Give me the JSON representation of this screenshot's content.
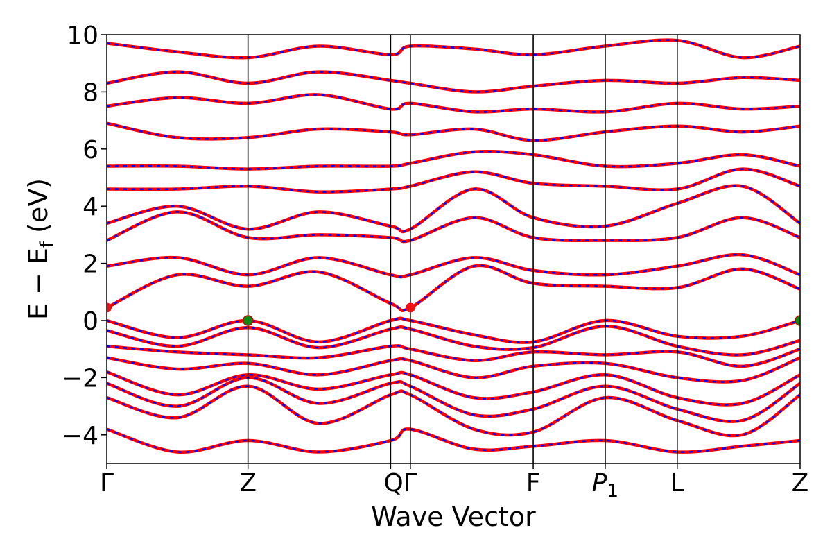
{
  "chart_data": {
    "type": "line",
    "title": "",
    "xlabel": "Wave Vector",
    "ylabel": "E − E",
    "ylabel_sub": "f",
    "ylabel_unit": " (eV)",
    "ylim": [
      -5,
      10
    ],
    "yticks": [
      -4,
      -2,
      0,
      2,
      4,
      6,
      8,
      10
    ],
    "ytick_labels": [
      "−4",
      "−2",
      "0",
      "2",
      "4",
      "6",
      "8",
      "10"
    ],
    "kpath": [
      {
        "label": "Γ",
        "k": 0.0
      },
      {
        "label": "Z",
        "k": 1.0
      },
      {
        "label": "Q",
        "k": 2.01
      },
      {
        "label": "Γ",
        "k": 2.15
      },
      {
        "label": "F",
        "k": 3.02
      },
      {
        "label": "P",
        "sub": "1",
        "k": 3.53
      },
      {
        "label": "L",
        "k": 4.04
      },
      {
        "label": "Z",
        "k": 4.91
      }
    ],
    "xtick_labels": [
      "Γ",
      "Z",
      "QΓ",
      "F",
      "P",
      "L",
      "Z"
    ],
    "xtick_sub": "1",
    "fermi_level": 0,
    "band_gap_markers": {
      "vbm": [
        {
          "k": 1.0,
          "E": 0.0
        },
        {
          "k": 4.91,
          "E": 0.0
        }
      ],
      "cbm": [
        {
          "k": 0.0,
          "E": 0.45
        },
        {
          "k": 2.15,
          "E": 0.45
        }
      ]
    },
    "series": [
      {
        "style": "solid",
        "color": "#ff0000",
        "bands": "red"
      },
      {
        "style": "dashed",
        "color": "#0000ff",
        "bands": "blue"
      }
    ],
    "bands": {
      "valence": [
        [
          [
            0,
            0.0
          ],
          [
            0.5,
            -0.6
          ],
          [
            1.0,
            0.0
          ],
          [
            1.5,
            -0.75
          ],
          [
            2.01,
            0.0
          ],
          [
            2.15,
            0.0
          ],
          [
            2.6,
            -0.5
          ],
          [
            3.02,
            -0.75
          ],
          [
            3.53,
            0.0
          ],
          [
            4.04,
            -0.55
          ],
          [
            4.5,
            -0.55
          ],
          [
            4.91,
            0.0
          ]
        ],
        [
          [
            0,
            -0.35
          ],
          [
            0.5,
            -0.9
          ],
          [
            1.0,
            -0.25
          ],
          [
            1.5,
            -0.95
          ],
          [
            2.01,
            -0.3
          ],
          [
            2.15,
            -0.3
          ],
          [
            2.6,
            -0.9
          ],
          [
            3.02,
            -0.95
          ],
          [
            3.53,
            -0.2
          ],
          [
            4.04,
            -0.9
          ],
          [
            4.5,
            -1.2
          ],
          [
            4.91,
            -0.7
          ]
        ],
        [
          [
            0,
            -0.9
          ],
          [
            0.5,
            -1.1
          ],
          [
            1.0,
            -1.2
          ],
          [
            1.5,
            -1.3
          ],
          [
            2.01,
            -0.9
          ],
          [
            2.15,
            -1.0
          ],
          [
            2.6,
            -1.4
          ],
          [
            3.02,
            -1.1
          ],
          [
            3.53,
            -1.2
          ],
          [
            4.04,
            -1.1
          ],
          [
            4.5,
            -1.6
          ],
          [
            4.91,
            -1.0
          ]
        ],
        [
          [
            0,
            -1.3
          ],
          [
            0.5,
            -1.7
          ],
          [
            1.0,
            -1.5
          ],
          [
            1.5,
            -1.9
          ],
          [
            2.01,
            -1.4
          ],
          [
            2.15,
            -1.4
          ],
          [
            2.6,
            -2.0
          ],
          [
            3.02,
            -1.6
          ],
          [
            3.53,
            -1.5
          ],
          [
            4.04,
            -2.0
          ],
          [
            4.5,
            -2.1
          ],
          [
            4.91,
            -1.3
          ]
        ],
        [
          [
            0,
            -1.8
          ],
          [
            0.5,
            -2.6
          ],
          [
            1.0,
            -1.9
          ],
          [
            1.5,
            -2.4
          ],
          [
            2.01,
            -1.9
          ],
          [
            2.15,
            -1.9
          ],
          [
            2.6,
            -2.7
          ],
          [
            3.02,
            -2.5
          ],
          [
            3.53,
            -1.9
          ],
          [
            4.04,
            -2.7
          ],
          [
            4.5,
            -2.9
          ],
          [
            4.91,
            -1.9
          ]
        ],
        [
          [
            0,
            -2.2
          ],
          [
            0.5,
            -3.0
          ],
          [
            1.0,
            -2.0
          ],
          [
            1.5,
            -2.9
          ],
          [
            2.01,
            -2.2
          ],
          [
            2.15,
            -2.3
          ],
          [
            2.6,
            -3.3
          ],
          [
            3.02,
            -3.1
          ],
          [
            3.53,
            -2.3
          ],
          [
            4.04,
            -3.1
          ],
          [
            4.5,
            -3.5
          ],
          [
            4.91,
            -2.2
          ]
        ],
        [
          [
            0,
            -2.7
          ],
          [
            0.5,
            -3.4
          ],
          [
            1.0,
            -2.3
          ],
          [
            1.5,
            -3.6
          ],
          [
            2.01,
            -2.6
          ],
          [
            2.15,
            -2.6
          ],
          [
            2.6,
            -3.8
          ],
          [
            3.02,
            -3.9
          ],
          [
            3.53,
            -2.7
          ],
          [
            4.04,
            -3.5
          ],
          [
            4.5,
            -4.0
          ],
          [
            4.91,
            -2.6
          ]
        ],
        [
          [
            0,
            -3.8
          ],
          [
            0.5,
            -4.6
          ],
          [
            1.0,
            -4.2
          ],
          [
            1.5,
            -4.6
          ],
          [
            2.01,
            -4.2
          ],
          [
            2.15,
            -3.8
          ],
          [
            2.6,
            -4.5
          ],
          [
            3.02,
            -4.4
          ],
          [
            3.53,
            -4.2
          ],
          [
            4.04,
            -4.6
          ],
          [
            4.5,
            -4.4
          ],
          [
            4.91,
            -4.2
          ]
        ]
      ],
      "conduction": [
        [
          [
            0,
            0.45
          ],
          [
            0.5,
            1.6
          ],
          [
            1.0,
            1.2
          ],
          [
            1.5,
            1.7
          ],
          [
            2.01,
            0.6
          ],
          [
            2.15,
            0.45
          ],
          [
            2.6,
            1.9
          ],
          [
            3.02,
            1.3
          ],
          [
            3.53,
            1.2
          ],
          [
            4.04,
            1.15
          ],
          [
            4.5,
            1.8
          ],
          [
            4.91,
            1.1
          ]
        ],
        [
          [
            0,
            1.9
          ],
          [
            0.5,
            2.2
          ],
          [
            1.0,
            1.6
          ],
          [
            1.5,
            2.2
          ],
          [
            2.01,
            1.6
          ],
          [
            2.15,
            1.6
          ],
          [
            2.6,
            2.2
          ],
          [
            3.02,
            1.75
          ],
          [
            3.53,
            1.6
          ],
          [
            4.04,
            1.9
          ],
          [
            4.5,
            2.3
          ],
          [
            4.91,
            1.6
          ]
        ],
        [
          [
            0,
            2.8
          ],
          [
            0.5,
            3.8
          ],
          [
            1.0,
            2.9
          ],
          [
            1.5,
            3.0
          ],
          [
            2.01,
            2.9
          ],
          [
            2.15,
            2.8
          ],
          [
            2.6,
            3.6
          ],
          [
            3.02,
            2.9
          ],
          [
            3.53,
            2.8
          ],
          [
            4.04,
            2.9
          ],
          [
            4.5,
            3.6
          ],
          [
            4.91,
            2.9
          ]
        ],
        [
          [
            0,
            3.4
          ],
          [
            0.5,
            4.0
          ],
          [
            1.0,
            3.2
          ],
          [
            1.5,
            3.8
          ],
          [
            2.01,
            3.3
          ],
          [
            2.15,
            3.2
          ],
          [
            2.6,
            4.6
          ],
          [
            3.02,
            3.6
          ],
          [
            3.53,
            3.3
          ],
          [
            4.04,
            4.1
          ],
          [
            4.5,
            4.7
          ],
          [
            4.91,
            3.4
          ]
        ],
        [
          [
            0,
            4.6
          ],
          [
            0.5,
            4.6
          ],
          [
            1.0,
            4.7
          ],
          [
            1.5,
            4.5
          ],
          [
            2.01,
            4.6
          ],
          [
            2.15,
            4.7
          ],
          [
            2.6,
            5.2
          ],
          [
            3.02,
            4.8
          ],
          [
            3.53,
            4.7
          ],
          [
            4.04,
            4.6
          ],
          [
            4.5,
            5.3
          ],
          [
            4.91,
            4.7
          ]
        ],
        [
          [
            0,
            5.4
          ],
          [
            0.5,
            5.4
          ],
          [
            1.0,
            5.3
          ],
          [
            1.5,
            5.4
          ],
          [
            2.01,
            5.4
          ],
          [
            2.15,
            5.5
          ],
          [
            2.6,
            5.9
          ],
          [
            3.02,
            5.8
          ],
          [
            3.53,
            5.4
          ],
          [
            4.04,
            5.5
          ],
          [
            4.5,
            5.8
          ],
          [
            4.91,
            5.4
          ]
        ],
        [
          [
            0,
            6.9
          ],
          [
            0.5,
            6.4
          ],
          [
            1.0,
            6.4
          ],
          [
            1.5,
            6.7
          ],
          [
            2.01,
            6.6
          ],
          [
            2.15,
            6.5
          ],
          [
            2.6,
            6.7
          ],
          [
            3.02,
            6.3
          ],
          [
            3.53,
            6.6
          ],
          [
            4.04,
            6.8
          ],
          [
            4.5,
            6.6
          ],
          [
            4.91,
            6.8
          ]
        ],
        [
          [
            0,
            7.5
          ],
          [
            0.5,
            7.8
          ],
          [
            1.0,
            7.6
          ],
          [
            1.5,
            7.9
          ],
          [
            2.01,
            7.4
          ],
          [
            2.15,
            7.6
          ],
          [
            2.6,
            7.3
          ],
          [
            3.02,
            7.4
          ],
          [
            3.53,
            7.3
          ],
          [
            4.04,
            7.6
          ],
          [
            4.5,
            7.4
          ],
          [
            4.91,
            7.5
          ]
        ],
        [
          [
            0,
            8.3
          ],
          [
            0.5,
            8.7
          ],
          [
            1.0,
            8.3
          ],
          [
            1.5,
            8.7
          ],
          [
            2.01,
            8.4
          ],
          [
            2.15,
            8.3
          ],
          [
            2.6,
            8.0
          ],
          [
            3.02,
            8.2
          ],
          [
            3.53,
            8.4
          ],
          [
            4.04,
            8.3
          ],
          [
            4.5,
            8.5
          ],
          [
            4.91,
            8.4
          ]
        ],
        [
          [
            0,
            9.7
          ],
          [
            0.5,
            9.4
          ],
          [
            1.0,
            9.2
          ],
          [
            1.5,
            9.6
          ],
          [
            2.01,
            9.3
          ],
          [
            2.15,
            9.6
          ],
          [
            2.6,
            9.5
          ],
          [
            3.02,
            9.3
          ],
          [
            3.53,
            9.6
          ],
          [
            4.04,
            9.8
          ],
          [
            4.5,
            9.2
          ],
          [
            4.91,
            9.6
          ]
        ]
      ]
    }
  }
}
